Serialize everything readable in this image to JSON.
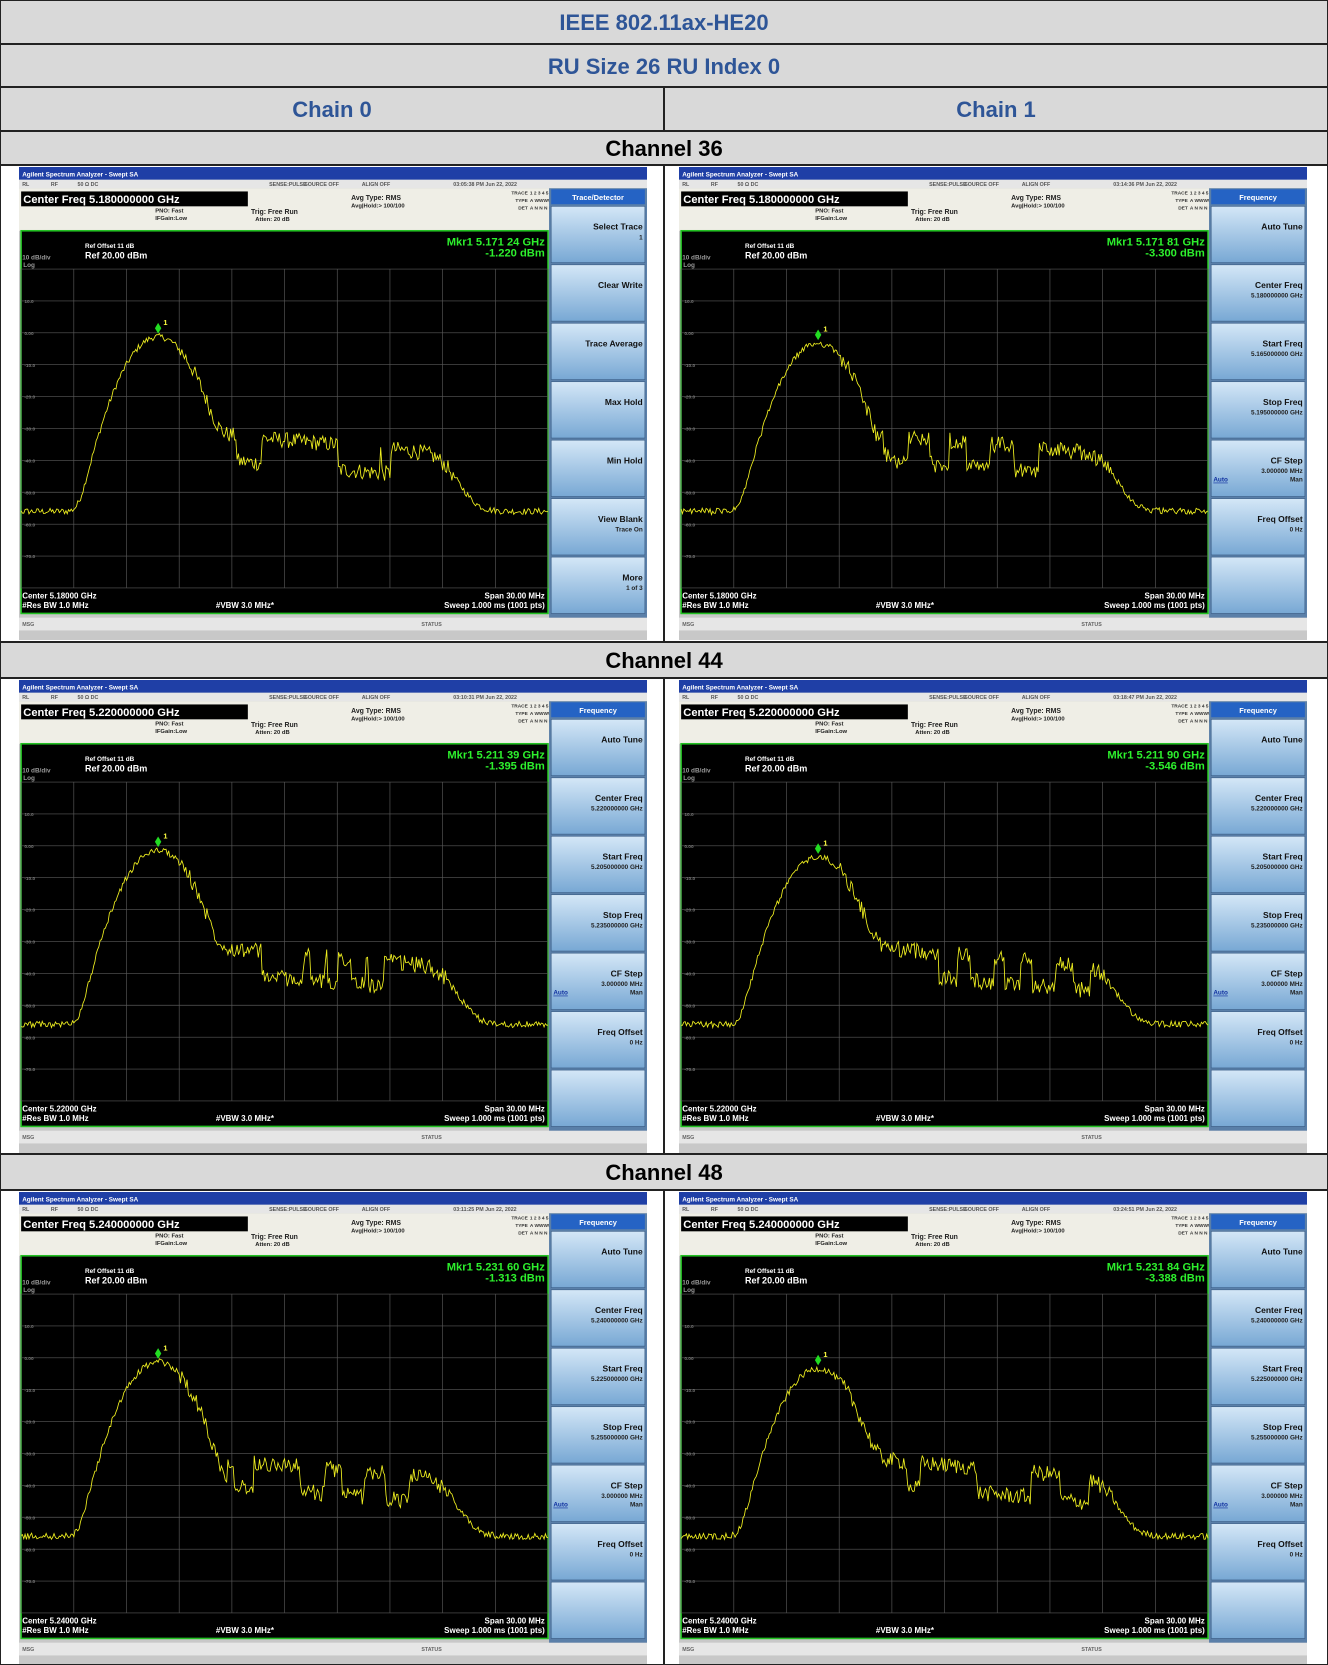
{
  "header": {
    "title": "IEEE 802.11ax-HE20",
    "subtitle": "RU Size 26 RU Index 0",
    "columns": [
      "Chain 0",
      "Chain 1"
    ]
  },
  "sections": [
    {
      "channel": "Channel 36",
      "screens": [
        {
          "window_title": "Agilent Spectrum Analyzer - Swept SA",
          "status_bar": [
            "RL",
            "RF",
            "50 Ω DC",
            "SENSE:PULSE",
            "SOURCE OFF",
            "ALIGN OFF"
          ],
          "timestamp": "03:05:38 PM Jun 22, 2022",
          "center_freq": "Center Freq 5.180000000 GHz",
          "pno": "PNO: Fast",
          "if_gain": "IFGain:Low",
          "trig": "Trig: Free Run",
          "atten": "Atten: 20 dB",
          "avg_type": "Avg Type: RMS",
          "avg_hold": "Avg|Hold:> 100/100",
          "trace_info": [
            [
              "TRACE",
              "1 2 3 4 5 6"
            ],
            [
              "TYPE",
              "A WWWWW"
            ],
            [
              "DET",
              "A N N N N N"
            ]
          ],
          "ref_offset": "Ref Offset 11 dB",
          "scale": "10 dB/div",
          "ref_level": "Ref 20.00 dBm",
          "log": "Log",
          "marker_freq": "Mkr1 5.171 24 GHz",
          "marker_amp": "-1.220 dBm",
          "marker_label": "1",
          "y_labels": [
            "10.0",
            "0.00",
            "-10.0",
            "-20.0",
            "-30.0",
            "-40.0",
            "-50.0",
            "-60.0",
            "-70.0"
          ],
          "center": "Center 5.18000 GHz",
          "rbw": "#Res BW 1.0 MHz",
          "vbw": "#VBW 3.0 MHz*",
          "span": "Span 30.00 MHz",
          "sweep": "Sweep 1.000 ms (1001 pts)",
          "msg": "MSG",
          "status": "STATUS",
          "menu": {
            "title": "Trace/Detector",
            "keys": [
              {
                "label": "Select Trace",
                "value": "1"
              },
              {
                "label": "Clear Write"
              },
              {
                "label": "Trace Average"
              },
              {
                "label": "Max Hold"
              },
              {
                "label": "Min Hold"
              },
              {
                "label": "View Blank",
                "value": "Trace On"
              },
              {
                "label": "More",
                "value": "1 of 3"
              }
            ]
          }
        },
        {
          "window_title": "Agilent Spectrum Analyzer - Swept SA",
          "status_bar": [
            "RL",
            "RF",
            "50 Ω DC",
            "SENSE:PULSE",
            "SOURCE OFF",
            "ALIGN OFF"
          ],
          "timestamp": "03:14:36 PM Jun 22, 2022",
          "center_freq": "Center Freq 5.180000000 GHz",
          "pno": "PNO: Fast",
          "if_gain": "IFGain:Low",
          "trig": "Trig: Free Run",
          "atten": "Atten: 20 dB",
          "avg_type": "Avg Type: RMS",
          "avg_hold": "Avg|Hold:> 100/100",
          "trace_info": [
            [
              "TRACE",
              "1 2 3 4 5 6"
            ],
            [
              "TYPE",
              "A WWWWW"
            ],
            [
              "DET",
              "A N N N N N"
            ]
          ],
          "ref_offset": "Ref Offset 11 dB",
          "scale": "10 dB/div",
          "ref_level": "Ref 20.00 dBm",
          "log": "Log",
          "marker_freq": "Mkr1 5.171 81 GHz",
          "marker_amp": "-3.300 dBm",
          "marker_label": "1",
          "y_labels": [
            "10.0",
            "0.00",
            "-10.0",
            "-20.0",
            "-30.0",
            "-40.0",
            "-50.0",
            "-60.0",
            "-70.0"
          ],
          "center": "Center 5.18000 GHz",
          "rbw": "#Res BW 1.0 MHz",
          "vbw": "#VBW 3.0 MHz*",
          "span": "Span 30.00 MHz",
          "sweep": "Sweep 1.000 ms (1001 pts)",
          "msg": "MSG",
          "status": "STATUS",
          "menu": {
            "title": "Frequency",
            "keys": [
              {
                "label": "Auto Tune"
              },
              {
                "label": "Center Freq",
                "value": "5.180000000 GHz"
              },
              {
                "label": "Start Freq",
                "value": "5.165000000 GHz"
              },
              {
                "label": "Stop Freq",
                "value": "5.195000000 GHz"
              },
              {
                "label": "CF Step",
                "value": "3.000000 MHz",
                "options": [
                  "Auto",
                  "Man"
                ]
              },
              {
                "label": "Freq Offset",
                "value": "0 Hz"
              }
            ]
          }
        }
      ]
    },
    {
      "channel": "Channel 44",
      "screens": [
        {
          "window_title": "Agilent Spectrum Analyzer - Swept SA",
          "status_bar": [
            "RL",
            "RF",
            "50 Ω DC",
            "SENSE:PULSE",
            "SOURCE OFF",
            "ALIGN OFF"
          ],
          "timestamp": "03:10:31 PM Jun 22, 2022",
          "center_freq": "Center Freq 5.220000000 GHz",
          "pno": "PNO: Fast",
          "if_gain": "IFGain:Low",
          "trig": "Trig: Free Run",
          "atten": "Atten: 20 dB",
          "avg_type": "Avg Type: RMS",
          "avg_hold": "Avg|Hold:> 100/100",
          "trace_info": [
            [
              "TRACE",
              "1 2 3 4 5 6"
            ],
            [
              "TYPE",
              "A WWWWW"
            ],
            [
              "DET",
              "A N N N N N"
            ]
          ],
          "ref_offset": "Ref Offset 11 dB",
          "scale": "10 dB/div",
          "ref_level": "Ref 20.00 dBm",
          "log": "Log",
          "marker_freq": "Mkr1 5.211 39 GHz",
          "marker_amp": "-1.395 dBm",
          "marker_label": "1",
          "y_labels": [
            "10.0",
            "0.00",
            "-10.0",
            "-20.0",
            "-30.0",
            "-40.0",
            "-50.0",
            "-60.0",
            "-70.0"
          ],
          "center": "Center 5.22000 GHz",
          "rbw": "#Res BW 1.0 MHz",
          "vbw": "#VBW 3.0 MHz*",
          "span": "Span 30.00 MHz",
          "sweep": "Sweep 1.000 ms (1001 pts)",
          "msg": "MSG",
          "status": "STATUS",
          "menu": {
            "title": "Frequency",
            "keys": [
              {
                "label": "Auto Tune"
              },
              {
                "label": "Center Freq",
                "value": "5.220000000 GHz"
              },
              {
                "label": "Start Freq",
                "value": "5.205000000 GHz"
              },
              {
                "label": "Stop Freq",
                "value": "5.235000000 GHz"
              },
              {
                "label": "CF Step",
                "value": "3.000000 MHz",
                "options": [
                  "Auto",
                  "Man"
                ]
              },
              {
                "label": "Freq Offset",
                "value": "0 Hz"
              }
            ]
          }
        },
        {
          "window_title": "Agilent Spectrum Analyzer - Swept SA",
          "status_bar": [
            "RL",
            "RF",
            "50 Ω DC",
            "SENSE:PULSE",
            "SOURCE OFF",
            "ALIGN OFF"
          ],
          "timestamp": "03:18:47 PM Jun 22, 2022",
          "center_freq": "Center Freq 5.220000000 GHz",
          "pno": "PNO: Fast",
          "if_gain": "IFGain:Low",
          "trig": "Trig: Free Run",
          "atten": "Atten: 20 dB",
          "avg_type": "Avg Type: RMS",
          "avg_hold": "Avg|Hold:> 100/100",
          "trace_info": [
            [
              "TRACE",
              "1 2 3 4 5 6"
            ],
            [
              "TYPE",
              "A WWWWW"
            ],
            [
              "DET",
              "A N N N N N"
            ]
          ],
          "ref_offset": "Ref Offset 11 dB",
          "scale": "10 dB/div",
          "ref_level": "Ref 20.00 dBm",
          "log": "Log",
          "marker_freq": "Mkr1 5.211 90 GHz",
          "marker_amp": "-3.546 dBm",
          "marker_label": "1",
          "y_labels": [
            "10.0",
            "0.00",
            "-10.0",
            "-20.0",
            "-30.0",
            "-40.0",
            "-50.0",
            "-60.0",
            "-70.0"
          ],
          "center": "Center 5.22000 GHz",
          "rbw": "#Res BW 1.0 MHz",
          "vbw": "#VBW 3.0 MHz*",
          "span": "Span 30.00 MHz",
          "sweep": "Sweep 1.000 ms (1001 pts)",
          "msg": "MSG",
          "status": "STATUS",
          "menu": {
            "title": "Frequency",
            "keys": [
              {
                "label": "Auto Tune"
              },
              {
                "label": "Center Freq",
                "value": "5.220000000 GHz"
              },
              {
                "label": "Start Freq",
                "value": "5.205000000 GHz"
              },
              {
                "label": "Stop Freq",
                "value": "5.235000000 GHz"
              },
              {
                "label": "CF Step",
                "value": "3.000000 MHz",
                "options": [
                  "Auto",
                  "Man"
                ]
              },
              {
                "label": "Freq Offset",
                "value": "0 Hz"
              }
            ]
          }
        }
      ]
    },
    {
      "channel": "Channel 48",
      "screens": [
        {
          "window_title": "Agilent Spectrum Analyzer - Swept SA",
          "status_bar": [
            "RL",
            "RF",
            "50 Ω DC",
            "SENSE:PULSE",
            "SOURCE OFF",
            "ALIGN OFF"
          ],
          "timestamp": "03:11:25 PM Jun 22, 2022",
          "center_freq": "Center Freq 5.240000000 GHz",
          "pno": "PNO: Fast",
          "if_gain": "IFGain:Low",
          "trig": "Trig: Free Run",
          "atten": "Atten: 20 dB",
          "avg_type": "Avg Type: RMS",
          "avg_hold": "Avg|Hold:> 100/100",
          "trace_info": [
            [
              "TRACE",
              "1 2 3 4 5 6"
            ],
            [
              "TYPE",
              "A WWWWW"
            ],
            [
              "DET",
              "A N N N N N"
            ]
          ],
          "ref_offset": "Ref Offset 11 dB",
          "scale": "10 dB/div",
          "ref_level": "Ref 20.00 dBm",
          "log": "Log",
          "marker_freq": "Mkr1 5.231 60 GHz",
          "marker_amp": "-1.313 dBm",
          "marker_label": "1",
          "y_labels": [
            "10.0",
            "0.00",
            "-10.0",
            "-20.0",
            "-30.0",
            "-40.0",
            "-50.0",
            "-60.0",
            "-70.0"
          ],
          "center": "Center 5.24000 GHz",
          "rbw": "#Res BW 1.0 MHz",
          "vbw": "#VBW 3.0 MHz*",
          "span": "Span 30.00 MHz",
          "sweep": "Sweep 1.000 ms (1001 pts)",
          "msg": "MSG",
          "status": "STATUS",
          "menu": {
            "title": "Frequency",
            "keys": [
              {
                "label": "Auto Tune"
              },
              {
                "label": "Center Freq",
                "value": "5.240000000 GHz"
              },
              {
                "label": "Start Freq",
                "value": "5.225000000 GHz"
              },
              {
                "label": "Stop Freq",
                "value": "5.255000000 GHz"
              },
              {
                "label": "CF Step",
                "value": "3.000000 MHz",
                "options": [
                  "Auto",
                  "Man"
                ]
              },
              {
                "label": "Freq Offset",
                "value": "0 Hz"
              }
            ]
          }
        },
        {
          "window_title": "Agilent Spectrum Analyzer - Swept SA",
          "status_bar": [
            "RL",
            "RF",
            "50 Ω DC",
            "SENSE:PULSE",
            "SOURCE OFF",
            "ALIGN OFF"
          ],
          "timestamp": "03:24:51 PM Jun 22, 2022",
          "center_freq": "Center Freq 5.240000000 GHz",
          "pno": "PNO: Fast",
          "if_gain": "IFGain:Low",
          "trig": "Trig: Free Run",
          "atten": "Atten: 20 dB",
          "avg_type": "Avg Type: RMS",
          "avg_hold": "Avg|Hold:> 100/100",
          "trace_info": [
            [
              "TRACE",
              "1 2 3 4 5 6"
            ],
            [
              "TYPE",
              "A WWWWW"
            ],
            [
              "DET",
              "A N N N N N"
            ]
          ],
          "ref_offset": "Ref Offset 11 dB",
          "scale": "10 dB/div",
          "ref_level": "Ref 20.00 dBm",
          "log": "Log",
          "marker_freq": "Mkr1 5.231 84 GHz",
          "marker_amp": "-3.388 dBm",
          "marker_label": "1",
          "y_labels": [
            "10.0",
            "0.00",
            "-10.0",
            "-20.0",
            "-30.0",
            "-40.0",
            "-50.0",
            "-60.0",
            "-70.0"
          ],
          "center": "Center 5.24000 GHz",
          "rbw": "#Res BW 1.0 MHz",
          "vbw": "#VBW 3.0 MHz*",
          "span": "Span 30.00 MHz",
          "sweep": "Sweep 1.000 ms (1001 pts)",
          "msg": "MSG",
          "status": "STATUS",
          "menu": {
            "title": "Frequency",
            "keys": [
              {
                "label": "Auto Tune"
              },
              {
                "label": "Center Freq",
                "value": "5.240000000 GHz"
              },
              {
                "label": "Start Freq",
                "value": "5.225000000 GHz"
              },
              {
                "label": "Stop Freq",
                "value": "5.255000000 GHz"
              },
              {
                "label": "CF Step",
                "value": "3.000000 MHz",
                "options": [
                  "Auto",
                  "Man"
                ]
              },
              {
                "label": "Freq Offset",
                "value": "0 Hz"
              }
            ]
          }
        }
      ]
    }
  ]
}
